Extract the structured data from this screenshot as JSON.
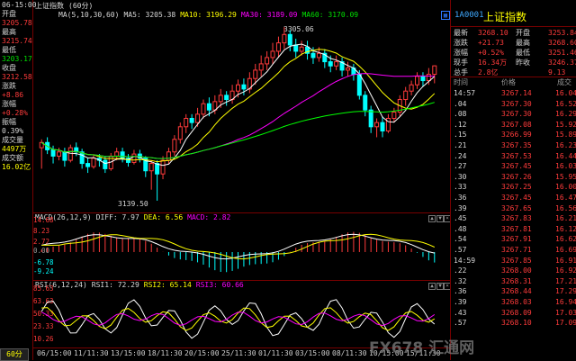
{
  "chart_title": "上证指数",
  "period_label": "(60分)",
  "ma_line": {
    "label": "MA(5,10,30,60)",
    "ma5": "MA5: 3205.38",
    "ma10": "MA10: 3196.29",
    "ma30": "MA30: 3189.09",
    "ma60": "MA60: 3170.09"
  },
  "info": {
    "time": "06-15:00",
    "open_label": "开盘",
    "open": "3205.78",
    "high_label": "最高",
    "high": "3215.74",
    "low_label": "最低",
    "low": "3203.17",
    "close_label": "收盘",
    "close": "3212.58",
    "chg_label": "涨跌",
    "chg": "+8.86",
    "pct_label": "涨幅",
    "pct": "+0.28%",
    "amp_label": "振幅",
    "amp": "0.39%",
    "vol_label": "成交量",
    "vol": "4497万",
    "amt_label": "成交额",
    "amt": "16.02亿"
  },
  "price_axis": {
    "high_label": "3305.06",
    "low_label": "3139.50"
  },
  "macd": {
    "title": "MACD(26,12,9)",
    "diff": "DIFF: 7.97",
    "dea": "DEA: 6.56",
    "macd": "MACD: 2.82",
    "y": [
      "14.68",
      "8.23",
      "2.72",
      "0.00",
      "-6.78",
      "-9.24"
    ]
  },
  "rsi": {
    "title": "RSI(6,12,24)",
    "rsi1": "RSI1: 72.29",
    "rsi2": "RSI2: 65.14",
    "rsi3": "RSI3: 60.66",
    "y": [
      "85.63",
      "63.63",
      "50.33",
      "23.33",
      "10.26"
    ]
  },
  "xaxis": [
    "06/15:00",
    "11/11:30",
    "13/15:00",
    "18/11:30",
    "20/15:00",
    "25/11:30",
    "01/11:30",
    "03/15:00",
    "08/11:30",
    "10/15:00",
    "15/11:30"
  ],
  "right": {
    "code": "1A0001",
    "name": "上证指数",
    "quote": [
      {
        "l1": "最新",
        "v1": "3268.10",
        "l2": "开盘",
        "v2": "3253.84"
      },
      {
        "l1": "涨跌",
        "v1": "+21.73",
        "l2": "最高",
        "v2": "3268.60"
      },
      {
        "l1": "涨幅",
        "v1": "+0.52%",
        "l2": "最低",
        "v2": "3251.46"
      },
      {
        "l1": "现手",
        "v1": "16.34万",
        "l2": "昨收",
        "v2": "3246.37"
      },
      {
        "l1": "总手",
        "v1": "2.8亿",
        "l2": "",
        "v2": "9.13"
      }
    ],
    "tick_header": {
      "time": "时间",
      "price": "价格",
      "vol": "成交"
    },
    "ticks": [
      {
        "t": "14:57",
        "p": "3267.14",
        "v": "16.04"
      },
      {
        "t": ".04",
        "p": "3267.30",
        "v": "16.52"
      },
      {
        "t": ".08",
        "p": "3267.30",
        "v": "16.29"
      },
      {
        "t": ".12",
        "p": "3267.08",
        "v": "15.92"
      },
      {
        "t": ".15",
        "p": "3266.99",
        "v": "15.89"
      },
      {
        "t": ".21",
        "p": "3267.35",
        "v": "16.23"
      },
      {
        "t": ".24",
        "p": "3267.53",
        "v": "16.44"
      },
      {
        "t": ".27",
        "p": "3267.45",
        "v": "16.03"
      },
      {
        "t": ".30",
        "p": "3267.26",
        "v": "15.95"
      },
      {
        "t": ".33",
        "p": "3267.25",
        "v": "16.00"
      },
      {
        "t": ".36",
        "p": "3267.45",
        "v": "16.47"
      },
      {
        "t": ".39",
        "p": "3267.65",
        "v": "16.56"
      },
      {
        "t": ".45",
        "p": "3267.83",
        "v": "16.21"
      },
      {
        "t": ".48",
        "p": "3267.81",
        "v": "16.12"
      },
      {
        "t": ".54",
        "p": "3267.91",
        "v": "16.62"
      },
      {
        "t": ".57",
        "p": "3267.71",
        "v": "16.69"
      },
      {
        "t": "14:59",
        "p": "3267.85",
        "v": "16.91"
      },
      {
        "t": ".22",
        "p": "3268.00",
        "v": "16.92"
      },
      {
        "t": ".32",
        "p": "3268.31",
        "v": "17.21"
      },
      {
        "t": ".36",
        "p": "3268.44",
        "v": "17.29"
      },
      {
        "t": ".39",
        "p": "3268.03",
        "v": "16.94"
      },
      {
        "t": ".43",
        "p": "3268.09",
        "v": "17.03"
      },
      {
        "t": ".57",
        "p": "3268.10",
        "v": "17.09"
      }
    ]
  },
  "watermark": "FX678 汇通网",
  "chart_data": {
    "type": "candlestick",
    "candles": [
      [
        3190,
        3195,
        3170,
        3198
      ],
      [
        3195,
        3188,
        3184,
        3200
      ],
      [
        3188,
        3182,
        3175,
        3192
      ],
      [
        3182,
        3186,
        3178,
        3190
      ],
      [
        3186,
        3178,
        3172,
        3190
      ],
      [
        3178,
        3190,
        3176,
        3193
      ],
      [
        3190,
        3186,
        3182,
        3195
      ],
      [
        3186,
        3175,
        3170,
        3189
      ],
      [
        3175,
        3172,
        3166,
        3180
      ],
      [
        3172,
        3180,
        3170,
        3184
      ],
      [
        3180,
        3178,
        3172,
        3184
      ],
      [
        3178,
        3170,
        3166,
        3182
      ],
      [
        3170,
        3182,
        3168,
        3185
      ],
      [
        3182,
        3186,
        3178,
        3190
      ],
      [
        3186,
        3180,
        3176,
        3190
      ],
      [
        3180,
        3176,
        3172,
        3184
      ],
      [
        3176,
        3184,
        3174,
        3188
      ],
      [
        3184,
        3180,
        3176,
        3188
      ],
      [
        3180,
        3168,
        3162,
        3182
      ],
      [
        3168,
        3175,
        3150,
        3178
      ],
      [
        3175,
        3165,
        3139.5,
        3178
      ],
      [
        3165,
        3178,
        3160,
        3182
      ],
      [
        3178,
        3186,
        3174,
        3190
      ],
      [
        3186,
        3198,
        3182,
        3202
      ],
      [
        3198,
        3210,
        3194,
        3214
      ],
      [
        3210,
        3218,
        3204,
        3222
      ],
      [
        3218,
        3214,
        3208,
        3222
      ],
      [
        3214,
        3222,
        3210,
        3228
      ],
      [
        3222,
        3232,
        3218,
        3236
      ],
      [
        3232,
        3226,
        3220,
        3238
      ],
      [
        3226,
        3234,
        3222,
        3240
      ],
      [
        3234,
        3240,
        3228,
        3246
      ],
      [
        3240,
        3236,
        3230,
        3244
      ],
      [
        3236,
        3244,
        3232,
        3250
      ],
      [
        3244,
        3250,
        3238,
        3255
      ],
      [
        3250,
        3246,
        3240,
        3256
      ],
      [
        3246,
        3256,
        3242,
        3262
      ],
      [
        3256,
        3264,
        3250,
        3270
      ],
      [
        3264,
        3270,
        3258,
        3278
      ],
      [
        3270,
        3276,
        3264,
        3282
      ],
      [
        3276,
        3282,
        3270,
        3290
      ],
      [
        3282,
        3290,
        3276,
        3296
      ],
      [
        3290,
        3298,
        3284,
        3305.06
      ],
      [
        3298,
        3288,
        3282,
        3302
      ],
      [
        3288,
        3282,
        3276,
        3294
      ],
      [
        3282,
        3286,
        3278,
        3292
      ],
      [
        3286,
        3280,
        3274,
        3292
      ],
      [
        3280,
        3276,
        3270,
        3286
      ],
      [
        3276,
        3280,
        3272,
        3286
      ],
      [
        3280,
        3272,
        3266,
        3284
      ],
      [
        3272,
        3268,
        3262,
        3278
      ],
      [
        3268,
        3272,
        3264,
        3278
      ],
      [
        3272,
        3264,
        3258,
        3276
      ],
      [
        3264,
        3266,
        3258,
        3272
      ],
      [
        3266,
        3260,
        3254,
        3270
      ],
      [
        3260,
        3240,
        3236,
        3264
      ],
      [
        3240,
        3226,
        3220,
        3244
      ],
      [
        3226,
        3210,
        3204,
        3230
      ],
      [
        3210,
        3214,
        3200,
        3218
      ],
      [
        3214,
        3206,
        3200,
        3220
      ],
      [
        3206,
        3218,
        3204,
        3222
      ],
      [
        3218,
        3224,
        3214,
        3228
      ],
      [
        3224,
        3236,
        3220,
        3240
      ],
      [
        3236,
        3244,
        3230,
        3248
      ],
      [
        3244,
        3250,
        3240,
        3254
      ],
      [
        3250,
        3258,
        3246,
        3262
      ],
      [
        3258,
        3254,
        3248,
        3262
      ],
      [
        3254,
        3260,
        3250,
        3266
      ],
      [
        3260,
        3268.1,
        3251.46,
        3268.6
      ]
    ],
    "ma": [
      {
        "name": "MA5",
        "color": "#ffffff"
      },
      {
        "name": "MA10",
        "color": "#ffff00"
      },
      {
        "name": "MA30",
        "color": "#ff00ff"
      },
      {
        "name": "MA60",
        "color": "#00ff00"
      }
    ],
    "ylim": [
      3130,
      3312
    ]
  }
}
